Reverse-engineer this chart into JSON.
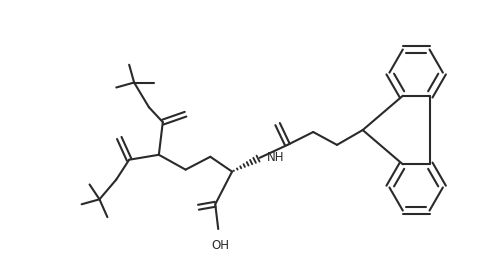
{
  "background_color": "#ffffff",
  "line_color": "#2a2a2a",
  "line_width": 1.5,
  "figsize": [
    4.8,
    2.68
  ],
  "dpi": 100
}
